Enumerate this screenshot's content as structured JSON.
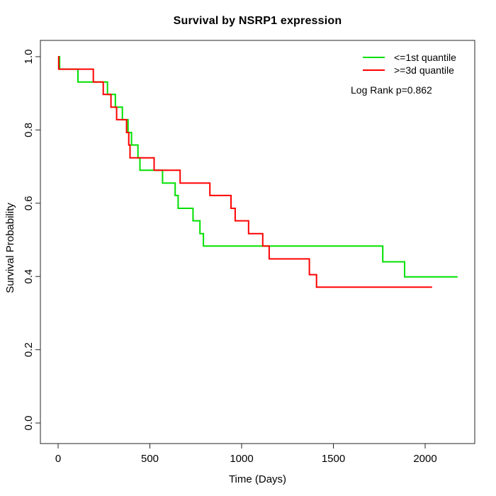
{
  "colors": {
    "background": "#ffffff",
    "axis": "#262626",
    "text": "#000000",
    "series_low": "#00e000",
    "series_high": "#ff0000"
  },
  "chart_data": {
    "type": "line",
    "variant": "kaplan-meier-step",
    "title": "Survival by NSRP1 expression",
    "xlabel": "Time (Days)",
    "ylabel": "Survival Probability",
    "xlim": [
      0,
      2200
    ],
    "ylim": [
      0.0,
      1.0
    ],
    "x_ticks": [
      0,
      500,
      1000,
      1500,
      2000
    ],
    "y_ticks": [
      0.0,
      0.2,
      0.4,
      0.6,
      0.8,
      1.0
    ],
    "grid": false,
    "legend_position": "top-right",
    "annotation": "Log Rank p=0.862",
    "series": [
      {
        "name": "<=1st quantile",
        "color": "#00e000",
        "points": [
          [
            0,
            1.0
          ],
          [
            8,
            0.966
          ],
          [
            108,
            0.931
          ],
          [
            269,
            0.897
          ],
          [
            312,
            0.862
          ],
          [
            350,
            0.828
          ],
          [
            381,
            0.793
          ],
          [
            400,
            0.759
          ],
          [
            435,
            0.724
          ],
          [
            446,
            0.69
          ],
          [
            569,
            0.655
          ],
          [
            638,
            0.621
          ],
          [
            654,
            0.586
          ],
          [
            735,
            0.552
          ],
          [
            773,
            0.517
          ],
          [
            792,
            0.483
          ],
          [
            1769,
            0.44
          ],
          [
            1888,
            0.399
          ],
          [
            2177,
            0.399
          ]
        ]
      },
      {
        "name": ">=3d quantile",
        "color": "#ff0000",
        "points": [
          [
            0,
            1.0
          ],
          [
            3,
            0.966
          ],
          [
            192,
            0.931
          ],
          [
            246,
            0.897
          ],
          [
            288,
            0.862
          ],
          [
            319,
            0.828
          ],
          [
            373,
            0.793
          ],
          [
            385,
            0.759
          ],
          [
            392,
            0.724
          ],
          [
            523,
            0.69
          ],
          [
            665,
            0.655
          ],
          [
            827,
            0.621
          ],
          [
            942,
            0.586
          ],
          [
            965,
            0.552
          ],
          [
            1038,
            0.517
          ],
          [
            1115,
            0.483
          ],
          [
            1150,
            0.448
          ],
          [
            1369,
            0.405
          ],
          [
            1408,
            0.371
          ],
          [
            2038,
            0.371
          ]
        ]
      }
    ]
  }
}
